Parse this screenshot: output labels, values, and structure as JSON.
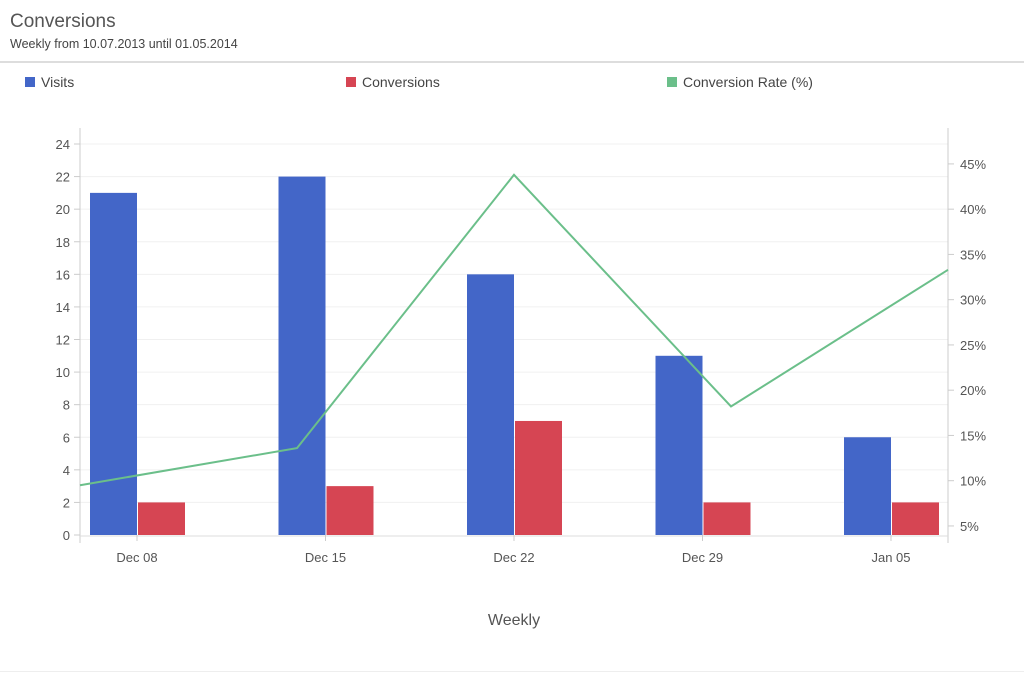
{
  "header": {
    "title": "Conversions",
    "subtitle": "Weekly from 10.07.2013 until 01.05.2014"
  },
  "chart_data": {
    "type": "bar",
    "categories": [
      "Dec 08",
      "Dec 15",
      "Dec 22",
      "Dec 29",
      "Jan 05"
    ],
    "xlabel": "Weekly",
    "ylim": [
      0,
      24
    ],
    "yticks": [
      0,
      2,
      4,
      6,
      8,
      10,
      12,
      14,
      16,
      18,
      20,
      22,
      24
    ],
    "y2lim": [
      4,
      47.2
    ],
    "y2ticks": [
      "5%",
      "10%",
      "15%",
      "20%",
      "25%",
      "30%",
      "35%",
      "40%",
      "45%"
    ],
    "y2tick_values": [
      5,
      10,
      15,
      20,
      25,
      30,
      35,
      40,
      45
    ],
    "grid": true,
    "legend_position": "top",
    "series": [
      {
        "name": "Visits",
        "type": "bar",
        "axis": "left",
        "color": "#4366c8",
        "values": [
          21,
          22,
          16,
          11,
          6
        ]
      },
      {
        "name": "Conversions",
        "type": "bar",
        "axis": "left",
        "color": "#d64553",
        "values": [
          2,
          3,
          7,
          2,
          2
        ]
      },
      {
        "name": "Conversion Rate (%)",
        "type": "line",
        "axis": "right",
        "color": "#6bbf8a",
        "values": [
          9.5,
          13.6,
          43.8,
          18.2,
          33.3
        ]
      }
    ]
  }
}
